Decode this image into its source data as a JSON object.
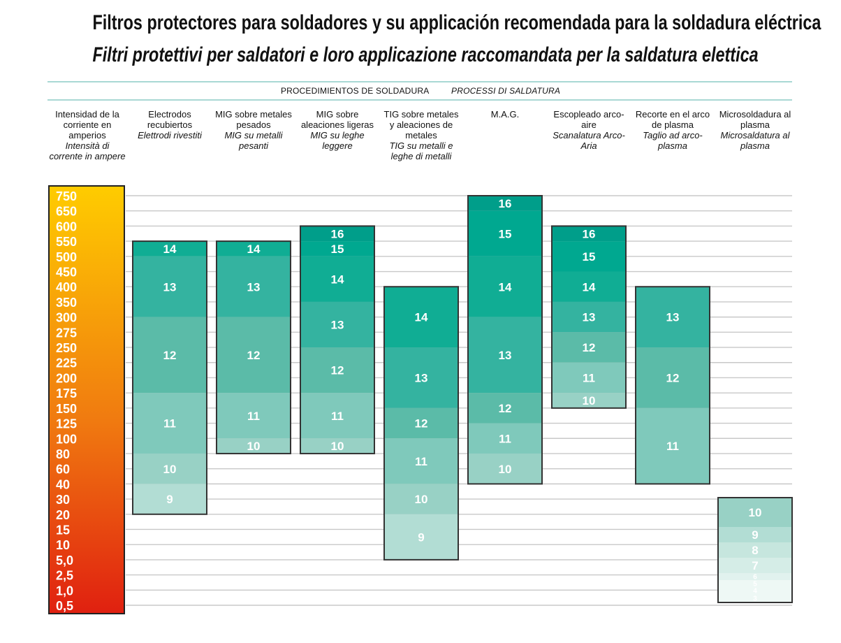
{
  "title_es": "Filtros protectores para soldadores y su applicación recomendada para la soldadura eléctrica",
  "title_it": "Filtri protettivi per saldatori e loro applicazione raccomandata per la saldatura elettica",
  "subtitle_es": "PROCEDIMIENTOS DE SOLDADURA",
  "subtitle_it": "PROCESSI DI SALDATURA",
  "axis_header": {
    "es": "Intensidad de la corriente en amperios",
    "it": "Intensità di corrente in ampere"
  },
  "colors": {
    "axis_top": "#ffcc00",
    "axis_mid": "#f07a10",
    "axis_bottom": "#e02010",
    "shade_16": "#009e8a",
    "shade_15": "#00a890",
    "shade_14": "#10ad94",
    "shade_13": "#34b3a0",
    "shade_12": "#5bbba8",
    "shade_11": "#7fc9bb",
    "shade_10": "#98d1c5",
    "shade_9": "#b2ddd4",
    "shade_8": "#c6e6de",
    "shade_7": "#d5ede7",
    "shade_6": "#e1f2ee",
    "shade_3": "#eef8f5",
    "gridline": "#c8c8c8",
    "rule": "#a9d8d4"
  },
  "chart_data": {
    "type": "bar",
    "x_type": "category",
    "y_type": "category",
    "ylabel": "Intensidad de la corriente en amperios / Intensità di corrente in ampere",
    "y_ticks": [
      "0,5",
      "1,0",
      "2,5",
      "5,0",
      "10",
      "15",
      "20",
      "30",
      "40",
      "60",
      "80",
      "100",
      "125",
      "150",
      "175",
      "200",
      "225",
      "250",
      "275",
      "300",
      "350",
      "400",
      "450",
      "500",
      "550",
      "600",
      "650",
      "750"
    ],
    "legend": "none",
    "grid": true,
    "categories": [
      {
        "name_es": "Electrodos recubiertos",
        "name_it": "Elettrodi rivestiti",
        "segments": [
          {
            "shade": "14",
            "from": "550",
            "to": "500"
          },
          {
            "shade": "13",
            "from": "500",
            "to": "300"
          },
          {
            "shade": "12",
            "from": "300",
            "to": "175"
          },
          {
            "shade": "11",
            "from": "175",
            "to": "80"
          },
          {
            "shade": "10",
            "from": "80",
            "to": "40"
          },
          {
            "shade": "9",
            "from": "40",
            "to": "20"
          }
        ]
      },
      {
        "name_es": "MIG sobre metales pesados",
        "name_it": "MIG su metalli pesanti",
        "segments": [
          {
            "shade": "14",
            "from": "550",
            "to": "500"
          },
          {
            "shade": "13",
            "from": "500",
            "to": "300"
          },
          {
            "shade": "12",
            "from": "300",
            "to": "175"
          },
          {
            "shade": "11",
            "from": "175",
            "to": "100"
          },
          {
            "shade": "10",
            "from": "100",
            "to": "80"
          }
        ]
      },
      {
        "name_es": "MIG sobre aleaciones ligeras",
        "name_it": "MIG su leghe leggere",
        "segments": [
          {
            "shade": "16",
            "from": "600",
            "to": "550"
          },
          {
            "shade": "15",
            "from": "550",
            "to": "500"
          },
          {
            "shade": "14",
            "from": "500",
            "to": "350"
          },
          {
            "shade": "13",
            "from": "350",
            "to": "250"
          },
          {
            "shade": "12",
            "from": "250",
            "to": "175"
          },
          {
            "shade": "11",
            "from": "175",
            "to": "100"
          },
          {
            "shade": "10",
            "from": "100",
            "to": "80"
          }
        ]
      },
      {
        "name_es": "TIG sobre metales y aleaciones de metales",
        "name_it": "TIG su metalli e leghe di metalli",
        "segments": [
          {
            "shade": "14",
            "from": "400",
            "to": "250"
          },
          {
            "shade": "13",
            "from": "250",
            "to": "150"
          },
          {
            "shade": "12",
            "from": "150",
            "to": "100"
          },
          {
            "shade": "11",
            "from": "100",
            "to": "40"
          },
          {
            "shade": "10",
            "from": "40",
            "to": "20"
          },
          {
            "shade": "9",
            "from": "20",
            "to": "5,0"
          }
        ]
      },
      {
        "name_es": "M.A.G.",
        "name_it": "",
        "segments": [
          {
            "shade": "16",
            "from": "750",
            "to": "650"
          },
          {
            "shade": "15",
            "from": "650",
            "to": "500"
          },
          {
            "shade": "14",
            "from": "500",
            "to": "300"
          },
          {
            "shade": "13",
            "from": "300",
            "to": "175"
          },
          {
            "shade": "12",
            "from": "175",
            "to": "125"
          },
          {
            "shade": "11",
            "from": "125",
            "to": "80"
          },
          {
            "shade": "10",
            "from": "80",
            "to": "40"
          }
        ]
      },
      {
        "name_es": "Escopleado arco-aire",
        "name_it": "Scanalatura Arco-Aria",
        "segments": [
          {
            "shade": "16",
            "from": "600",
            "to": "550"
          },
          {
            "shade": "15",
            "from": "550",
            "to": "450"
          },
          {
            "shade": "14",
            "from": "450",
            "to": "350"
          },
          {
            "shade": "13",
            "from": "350",
            "to": "275"
          },
          {
            "shade": "12",
            "from": "275",
            "to": "225"
          },
          {
            "shade": "11",
            "from": "225",
            "to": "175"
          },
          {
            "shade": "10",
            "from": "175",
            "to": "150"
          }
        ]
      },
      {
        "name_es": "Recorte en el arco de plasma",
        "name_it": "Taglio ad arco-plasma",
        "segments": [
          {
            "shade": "13",
            "from": "400",
            "to": "250"
          },
          {
            "shade": "12",
            "from": "250",
            "to": "150"
          },
          {
            "shade": "11",
            "from": "150",
            "to": "40"
          }
        ]
      },
      {
        "name_es": "Microsoldadura al plasma",
        "name_it": "Microsaldatura al plasma",
        "segments": [
          {
            "shade": "10",
            "from": "30",
            "to": "15"
          },
          {
            "shade": "9",
            "from": "15",
            "to": "10"
          },
          {
            "shade": "8",
            "from": "10",
            "to": "5,0"
          },
          {
            "shade": "7",
            "from": "5,0",
            "to": "2,5"
          },
          {
            "shade": "6",
            "from": "2,5",
            "to": "1,0"
          },
          {
            "shade": "5",
            "from": "1,0",
            "to": "1,0"
          },
          {
            "shade": "4",
            "from": "1,0",
            "to": "0,5"
          },
          {
            "shade": "3",
            "from": "0,5",
            "to": "0,5"
          }
        ]
      }
    ]
  }
}
